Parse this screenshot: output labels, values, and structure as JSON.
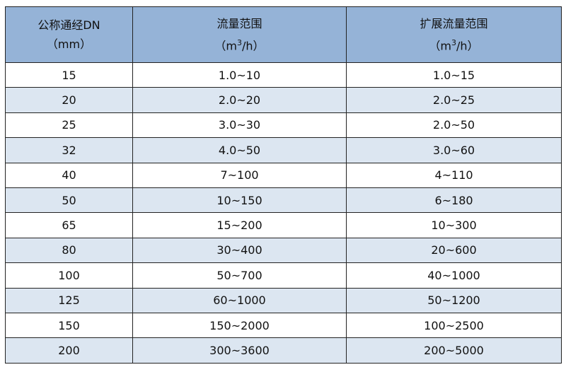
{
  "colors": {
    "header": "#95b3d7",
    "alt_row": "#dce6f1",
    "border": "#222222"
  },
  "headers": [
    {
      "line1": "公称通经DN",
      "line2": "（mm）"
    },
    {
      "line1": "流量范围",
      "line2_pre": "（m",
      "line2_sup": "3",
      "line2_post": "/h）"
    },
    {
      "line1": "扩展流量范围",
      "line2_pre": "（m",
      "line2_sup": "3",
      "line2_post": "/h）"
    }
  ],
  "rows": [
    [
      "15",
      "1.0~10",
      "1.0~15"
    ],
    [
      "20",
      "2.0~20",
      "2.0~25"
    ],
    [
      "25",
      "3.0~30",
      "2.0~50"
    ],
    [
      "32",
      "4.0~50",
      "3.0~60"
    ],
    [
      "40",
      "7~100",
      "4~110"
    ],
    [
      "50",
      "10~150",
      "6~180"
    ],
    [
      "65",
      "15~200",
      "10~300"
    ],
    [
      "80",
      "30~400",
      "20~600"
    ],
    [
      "100",
      "50~700",
      "40~1000"
    ],
    [
      "125",
      "60~1000",
      "50~1200"
    ],
    [
      "150",
      "150~2000",
      "100~2500"
    ],
    [
      "200",
      "300~3600",
      "200~5000"
    ]
  ]
}
